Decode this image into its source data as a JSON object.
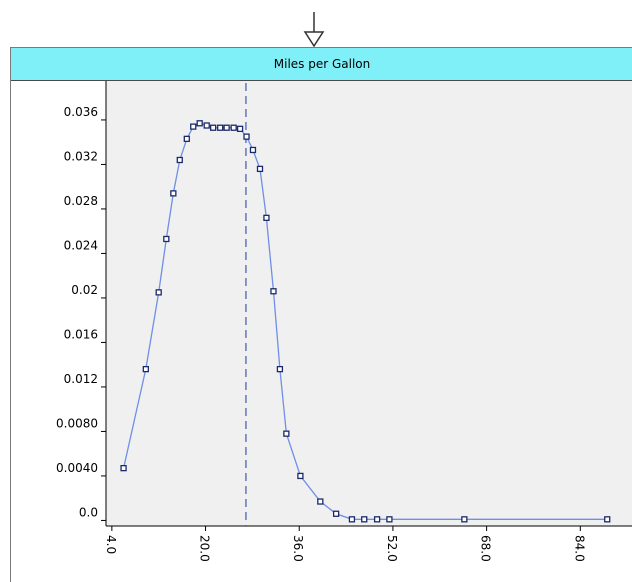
{
  "window": {
    "title": "Miles per Gallon"
  },
  "colors": {
    "header": "#80f0f8",
    "line": "#6f8fe8",
    "marker": "#1a2a6a",
    "plot_bg": "#f0f0f0"
  },
  "icons": {
    "drop": "down-arrow-icon"
  },
  "chart_data": {
    "type": "line",
    "title": "Miles per Gallon",
    "xlabel": "",
    "ylabel": "",
    "xlim": [
      3,
      93
    ],
    "ylim": [
      -0.0005,
      0.0395
    ],
    "x_ticks": [
      4.0,
      20.0,
      36.0,
      52.0,
      68.0,
      84.0
    ],
    "x_tick_labels": [
      "4.0",
      "20.0",
      "36.0",
      "52.0",
      "68.0",
      "84.0"
    ],
    "y_ticks": [
      0.0,
      0.004,
      0.008,
      0.012,
      0.016,
      0.02,
      0.024,
      0.028,
      0.032,
      0.036
    ],
    "y_tick_labels": [
      "0.0",
      "0.0040",
      "0.0080",
      "0.012",
      "0.016",
      "0.02",
      "0.024",
      "0.028",
      "0.032",
      "0.036"
    ],
    "vertical_marker_x": 26.9,
    "grid": false,
    "series": [
      {
        "x": [
          6.0,
          9.8,
          12.0,
          13.3,
          14.5,
          15.6,
          16.8,
          17.9,
          19.0,
          20.2,
          21.3,
          22.5,
          23.6,
          24.8,
          25.9,
          27.0,
          28.1,
          29.3,
          30.4,
          31.6,
          32.7,
          33.8,
          36.2,
          39.6,
          42.3,
          45.0,
          47.1,
          49.3,
          51.4,
          64.2,
          88.6
        ],
        "y": [
          0.0047,
          0.0136,
          0.0205,
          0.0253,
          0.0294,
          0.0324,
          0.0343,
          0.0354,
          0.0357,
          0.0355,
          0.0353,
          0.0353,
          0.0353,
          0.0353,
          0.0352,
          0.0345,
          0.0333,
          0.0316,
          0.0272,
          0.0206,
          0.0136,
          0.0078,
          0.004,
          0.0017,
          0.0006,
          0.0001,
          0.0001,
          0.0001,
          0.0001,
          0.0001,
          0.0001
        ]
      }
    ]
  }
}
